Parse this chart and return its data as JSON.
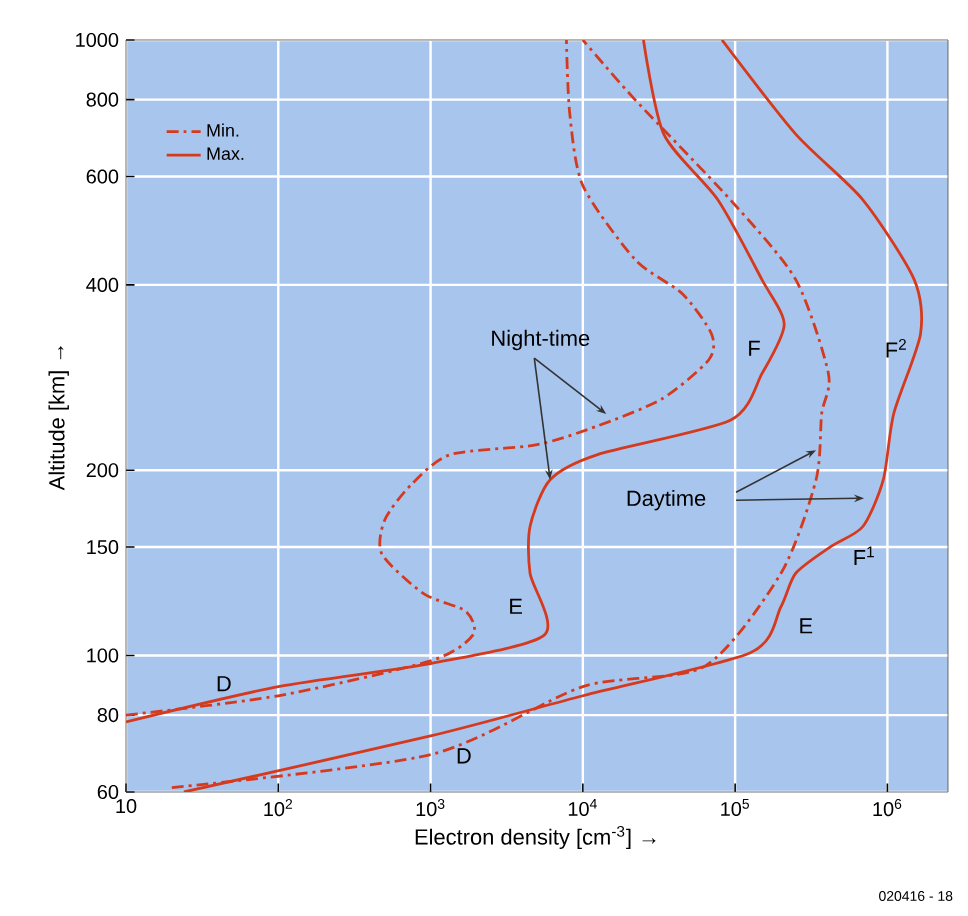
{
  "chart_data": {
    "type": "line",
    "xlabel": "Electron density [cm$^{-3}$] →",
    "ylabel": "Altitude [km] →",
    "xlim": [
      10,
      2500000
    ],
    "ylim": [
      60,
      1000
    ],
    "log": "xy",
    "grid": true,
    "legend": "top left",
    "xticks": [
      {
        "value": 10,
        "label": "10"
      },
      {
        "value": 100,
        "label": "10$^{2}$"
      },
      {
        "value": 1000,
        "label": "10$^{3}$"
      },
      {
        "value": 10000,
        "label": "10$^{4}$"
      },
      {
        "value": 100000,
        "label": "10$^{5}$"
      },
      {
        "value": 1000000,
        "label": "10$^{6}$"
      }
    ],
    "yticks": [
      60,
      80,
      100,
      150,
      200,
      400,
      600,
      800,
      1000
    ],
    "series": [
      {
        "name": "Min.",
        "color": "#d63a1e",
        "line_style": "dashdot",
        "x": [
          10,
          100,
          1000,
          1900,
          1700,
          900,
          480,
          500,
          740,
          1350,
          5000,
          12500,
          33000,
          67000,
          70000,
          45000,
          22000,
          10000,
          8200,
          7800
        ],
        "values": [
          80,
          86,
          98,
          108,
          118,
          126,
          146,
          166,
          189,
          212,
          220,
          236,
          261,
          302,
          333,
          387,
          440,
          580,
          760,
          1000
        ]
      },
      {
        "name": "Max.",
        "color": "#d63a1e",
        "line_style": "solid",
        "x": [
          10,
          100,
          1000,
          5600,
          4500,
          4500,
          6100,
          12500,
          93000,
          150000,
          210000,
          150000,
          77000,
          34000,
          25000
        ],
        "values": [
          78,
          89,
          97,
          108,
          136,
          162,
          193,
          212,
          241,
          287,
          345,
          408,
          550,
          703,
          1000
        ]
      },
      {
        "color": "#d63a1e",
        "line_style": "dashdot",
        "x": [
          20,
          1000,
          10000,
          63000,
          200000,
          340000,
          370000,
          410000,
          250000,
          93000,
          22000,
          10000
        ],
        "values": [
          61,
          69,
          89,
          96,
          136,
          193,
          247,
          287,
          408,
          550,
          800,
          1000
        ]
      },
      {
        "color": "#d63a1e",
        "line_style": "solid",
        "x": [
          24,
          1000,
          10000,
          126000,
          200000,
          250000,
          420000,
          690000,
          940000,
          1100000,
          1650000,
          1500000,
          690000,
          250000,
          82000
        ],
        "values": [
          60,
          74,
          86,
          101,
          120,
          136,
          150,
          162,
          193,
          247,
          333,
          408,
          550,
          703,
          1000
        ]
      }
    ],
    "annotations": [
      {
        "text": "Night-time",
        "x": 6100,
        "y": 193
      },
      "Daytime",
      "F",
      "F$^{2}$",
      "F$^{1}$",
      "E",
      "E",
      "D",
      "D",
      "020416 - 18"
    ]
  }
}
